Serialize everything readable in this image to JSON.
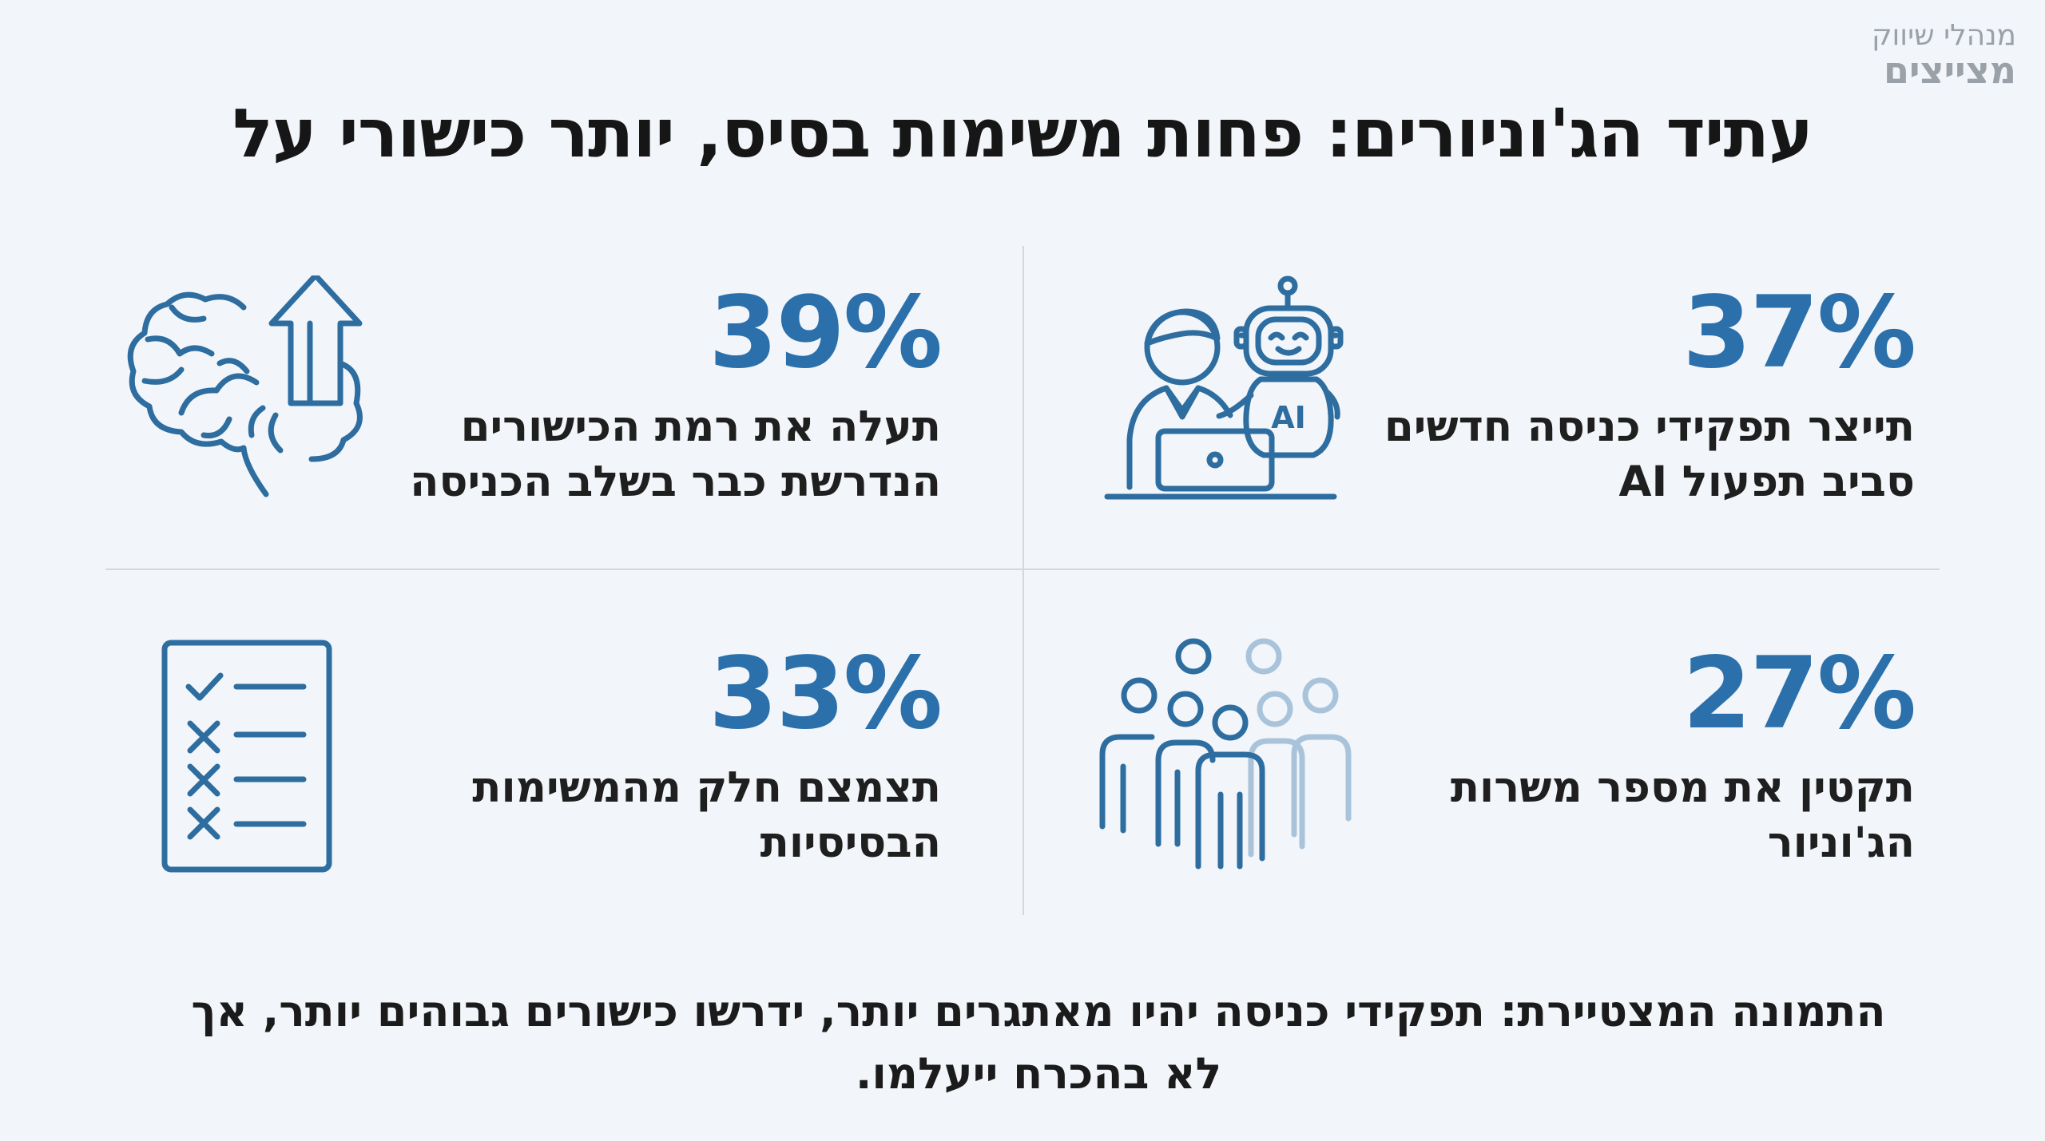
{
  "brand": {
    "line1": "מנהלי שיווק",
    "line2": "מצייצים"
  },
  "title": "עתיד הג'וניורים: פחות משימות בסיס, יותר כישורי על",
  "stats": [
    {
      "value": "37%",
      "description": "תייצר תפקידי כניסה חדשים סביב תפעול AI",
      "icon": "robot-person-laptop-icon"
    },
    {
      "value": "39%",
      "description": "תעלה את רמת הכישורים הנדרשת כבר בשלב הכניסה",
      "icon": "brain-arrow-up-icon"
    },
    {
      "value": "27%",
      "description": "תקטין את מספר משרות הג'וניור",
      "icon": "people-group-icon"
    },
    {
      "value": "33%",
      "description": "תצמצם חלק מהמשימות הבסיסיות",
      "icon": "checklist-icon"
    }
  ],
  "ai_badge": "AI",
  "footer": "התמונה המצטיירת: תפקידי כניסה יהיו מאתגרים יותר, ידרשו כישורים גבוהים יותר, אך לא בהכרח ייעלמו.",
  "colors": {
    "accent": "#2b70ab",
    "icon_stroke": "#2e6d9f",
    "icon_faded": "#a9c4da",
    "background": "#f2f5f9"
  }
}
